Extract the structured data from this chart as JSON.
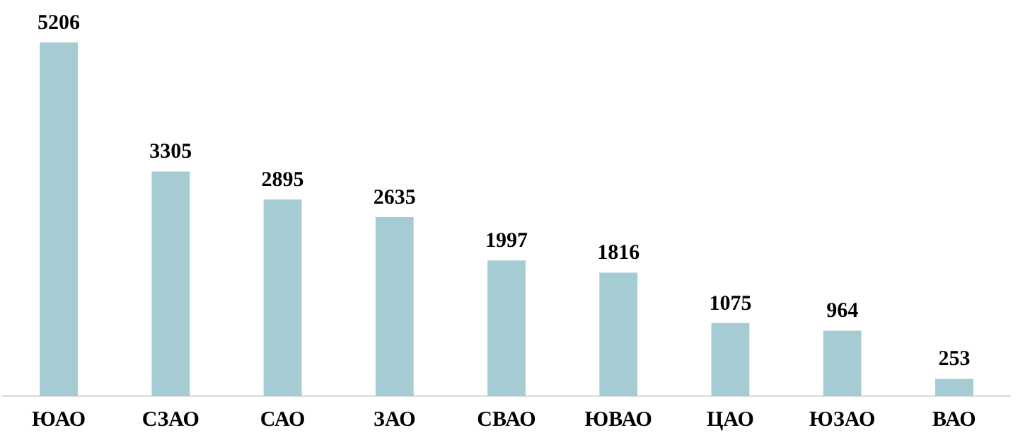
{
  "chart_data": {
    "type": "bar",
    "categories": [
      "ЮАО",
      "СЗАО",
      "САО",
      "ЗАО",
      "СВАО",
      "ЮВАО",
      "ЦАО",
      "ЮЗАО",
      "ВАО"
    ],
    "values": [
      5206,
      3305,
      2895,
      2635,
      1997,
      1816,
      1075,
      964,
      253
    ],
    "color": "#a5cbd3",
    "data_labels": true,
    "grid": false,
    "legend": false
  }
}
